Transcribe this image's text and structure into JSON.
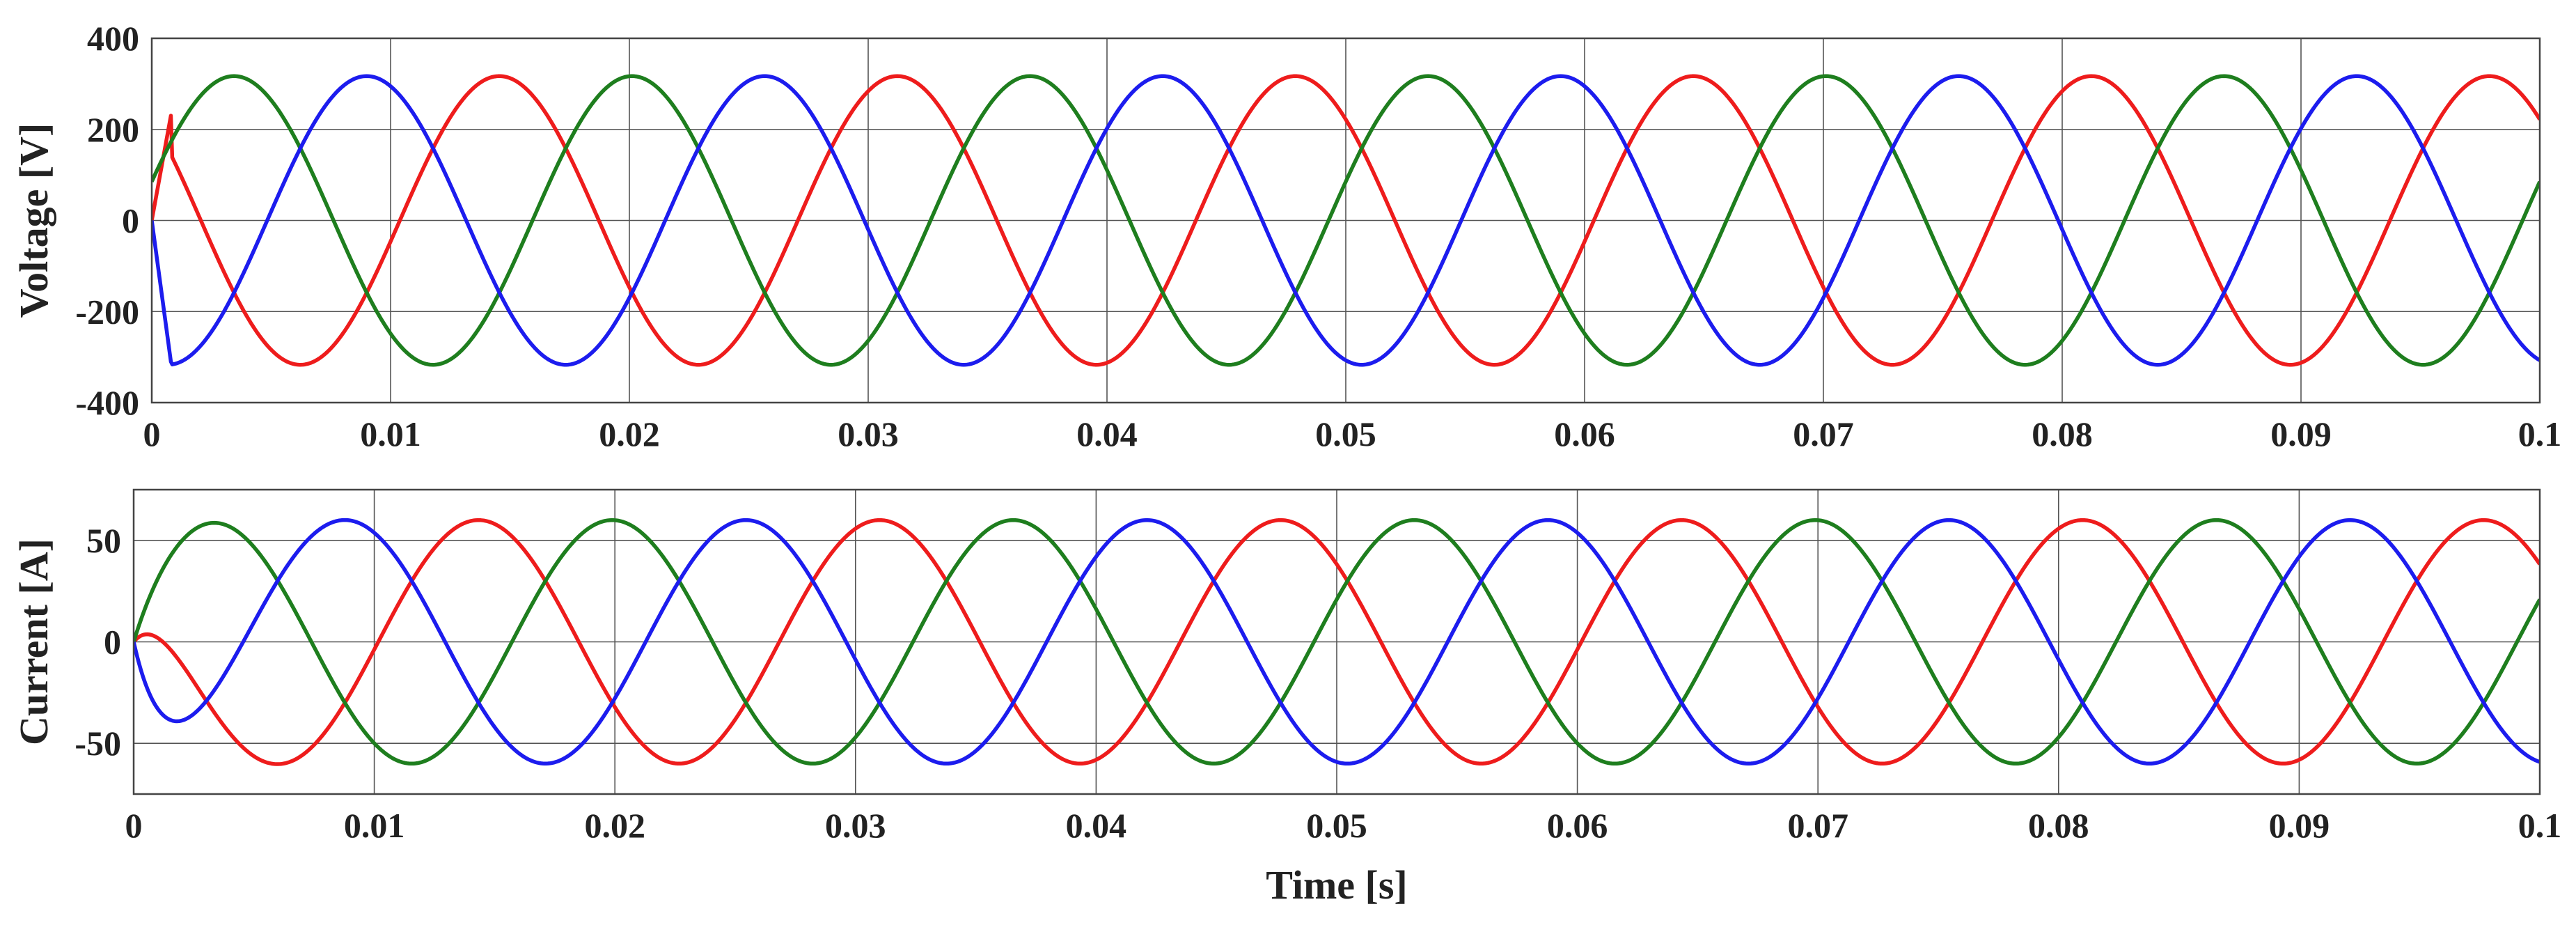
{
  "chart_data": [
    {
      "type": "line",
      "ylabel": "Voltage [V]",
      "xlabel": "",
      "xlim": [
        0,
        0.1
      ],
      "ylim": [
        -400,
        400
      ],
      "x_ticks": [
        0,
        0.01,
        0.02,
        0.03,
        0.04,
        0.05,
        0.06,
        0.07,
        0.08,
        0.09,
        0.1
      ],
      "x_tick_labels": [
        "0",
        "0.01",
        "0.02",
        "0.03",
        "0.04",
        "0.05",
        "0.06",
        "0.07",
        "0.08",
        "0.09",
        "0.1"
      ],
      "y_ticks": [
        -400,
        -200,
        0,
        200,
        400
      ],
      "y_tick_labels": [
        "-400",
        "-200",
        "0",
        "200",
        "400"
      ],
      "grid": true,
      "legend": "none",
      "frequency_hz": 60,
      "amplitude": 317,
      "series": [
        {
          "color": "#ee1c1c",
          "phase_deg": 135.6,
          "startup": [
            [
              0,
              0
            ],
            [
              0.0008,
              230
            ]
          ]
        },
        {
          "color": "#1e7e1e",
          "phase_deg": 15.6,
          "startup": []
        },
        {
          "color": "#1c1cee",
          "phase_deg": -104.4,
          "startup": [
            [
              0,
              0
            ],
            [
              0.0008,
              -310
            ]
          ]
        }
      ]
    },
    {
      "type": "line",
      "ylabel": "Current [A]",
      "xlabel": "Time [s]",
      "xlim": [
        0,
        0.1
      ],
      "ylim": [
        -75,
        75
      ],
      "x_ticks": [
        0,
        0.01,
        0.02,
        0.03,
        0.04,
        0.05,
        0.06,
        0.07,
        0.08,
        0.09,
        0.1
      ],
      "x_tick_labels": [
        "0",
        "0.01",
        "0.02",
        "0.03",
        "0.04",
        "0.05",
        "0.06",
        "0.07",
        "0.08",
        "0.09",
        "0.1"
      ],
      "y_ticks": [
        -50,
        0,
        50
      ],
      "y_tick_labels": [
        "-50",
        "0",
        "50"
      ],
      "grid": true,
      "legend": "none",
      "frequency_hz": 60,
      "amplitude": 60,
      "series": [
        {
          "color": "#ee1c1c",
          "phase_deg": 140.4,
          "startup_tau": 0.0012
        },
        {
          "color": "#1e7e1e",
          "phase_deg": 20.4,
          "startup_tau": 0.0012
        },
        {
          "color": "#1c1cee",
          "phase_deg": -99.6,
          "startup_tau": 0.0012
        }
      ]
    }
  ]
}
